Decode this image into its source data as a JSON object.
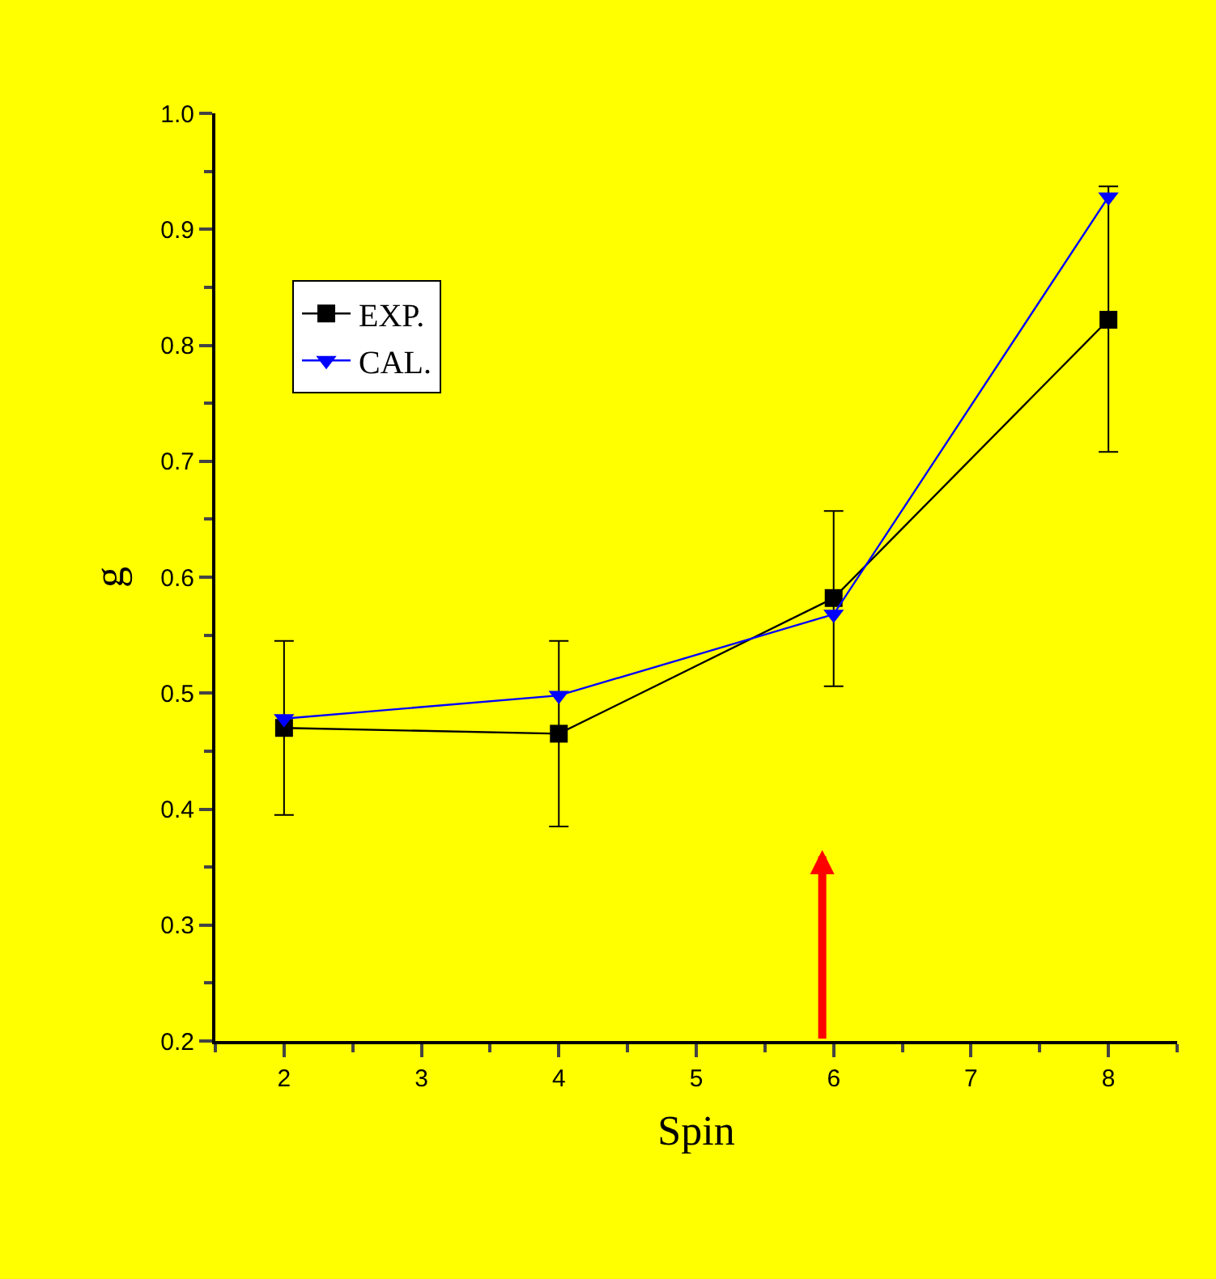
{
  "chart_data": {
    "type": "line",
    "xlabel": "Spin",
    "ylabel": "g",
    "x": [
      2,
      4,
      6,
      8
    ],
    "series": [
      {
        "name": "EXP.",
        "color": "#000000",
        "marker": "square",
        "values": [
          0.47,
          0.465,
          0.582,
          0.822
        ],
        "errors": [
          [
            0.395,
            0.545
          ],
          [
            0.385,
            0.545
          ],
          [
            0.506,
            0.657
          ],
          [
            0.708,
            0.937
          ]
        ]
      },
      {
        "name": "CAL.",
        "color": "#0000ff",
        "marker": "triangle",
        "values": [
          0.478,
          0.498,
          0.568,
          0.928
        ]
      }
    ],
    "xlim": [
      1.5,
      8.5
    ],
    "xticks": [
      2,
      3,
      4,
      5,
      6,
      7,
      8
    ],
    "ylim": [
      0.2,
      1.0
    ],
    "yticks": [
      {
        "value": 0.2,
        "label": "0.2"
      },
      {
        "value": 0.3,
        "label": "0.3"
      },
      {
        "value": 0.4,
        "label": "0.4"
      },
      {
        "value": 0.5,
        "label": "0.5"
      },
      {
        "value": 0.6,
        "label": "0.6"
      },
      {
        "value": 0.7,
        "label": "0.7"
      },
      {
        "value": 0.8,
        "label": "0.8"
      },
      {
        "value": 0.9,
        "label": "0.9"
      },
      {
        "value": 1.0,
        "label": "1.0"
      }
    ],
    "grid": false,
    "legend": "top left"
  }
}
